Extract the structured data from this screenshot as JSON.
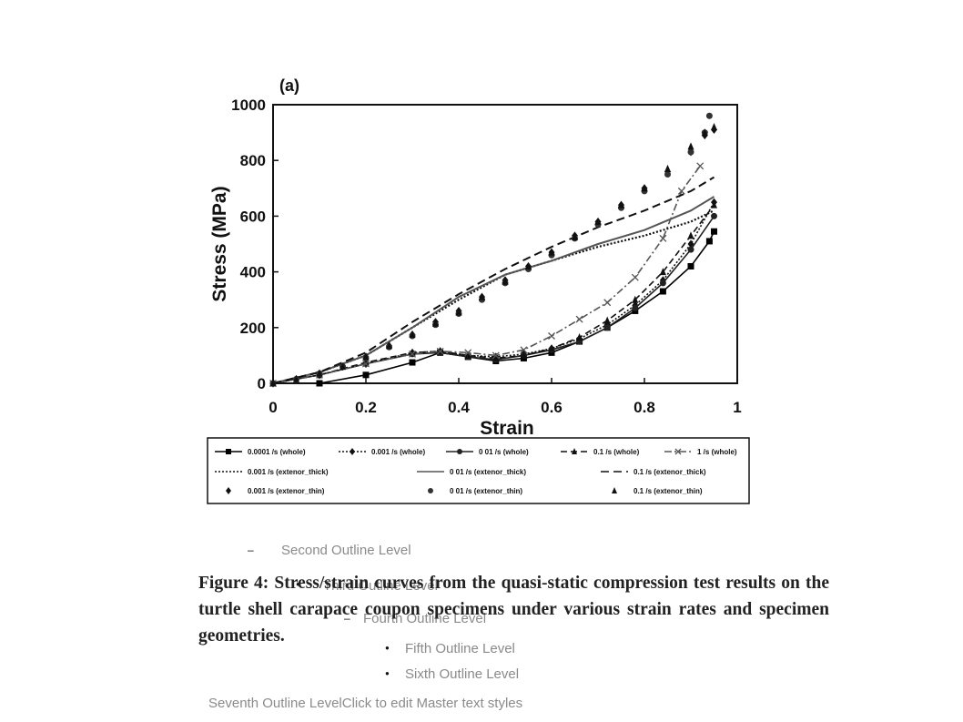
{
  "chart_data": {
    "type": "scatter",
    "panel_label": "(a)",
    "xlabel": "Strain",
    "ylabel": "Stress (MPa)",
    "xlim": [
      0,
      1
    ],
    "ylim": [
      0,
      1000
    ],
    "xticks": [
      "0",
      "0.2",
      "0.4",
      "0.6",
      "0.8",
      "1"
    ],
    "yticks": [
      "0",
      "200",
      "400",
      "600",
      "800",
      "1000"
    ],
    "grid": false,
    "legend_position": "bottom",
    "series": [
      {
        "name": "0.0001 /s (whole)",
        "style": "line-square",
        "x": [
          0.1,
          0.2,
          0.3,
          0.36,
          0.42,
          0.48,
          0.54,
          0.6,
          0.66,
          0.72,
          0.78,
          0.84,
          0.9,
          0.94,
          0.95
        ],
        "y": [
          0,
          30,
          75,
          110,
          95,
          80,
          90,
          110,
          150,
          200,
          260,
          330,
          420,
          510,
          545
        ]
      },
      {
        "name": "0.001 /s (whole)",
        "style": "dotted-diamond",
        "x": [
          0,
          0.1,
          0.2,
          0.3,
          0.36,
          0.42,
          0.48,
          0.54,
          0.6,
          0.66,
          0.72,
          0.78,
          0.84,
          0.9,
          0.95
        ],
        "y": [
          0,
          30,
          70,
          110,
          115,
          100,
          95,
          105,
          125,
          160,
          210,
          280,
          370,
          500,
          650
        ]
      },
      {
        "name": "0 01 /s (whole)",
        "style": "line-circle",
        "x": [
          0,
          0.1,
          0.2,
          0.3,
          0.36,
          0.42,
          0.48,
          0.54,
          0.6,
          0.66,
          0.72,
          0.78,
          0.84,
          0.9,
          0.95
        ],
        "y": [
          0,
          30,
          70,
          105,
          110,
          95,
          85,
          100,
          120,
          150,
          200,
          270,
          360,
          480,
          600
        ]
      },
      {
        "name": "0.1 /s (whole)",
        "style": "dash-triangle",
        "x": [
          0,
          0.1,
          0.2,
          0.3,
          0.36,
          0.42,
          0.48,
          0.54,
          0.6,
          0.66,
          0.72,
          0.78,
          0.84,
          0.9,
          0.95
        ],
        "y": [
          0,
          30,
          75,
          110,
          115,
          100,
          90,
          100,
          125,
          165,
          225,
          300,
          400,
          530,
          640
        ]
      },
      {
        "name": "1 /s (whole)",
        "style": "dashdot-x",
        "x": [
          0,
          0.1,
          0.2,
          0.3,
          0.36,
          0.42,
          0.48,
          0.54,
          0.6,
          0.66,
          0.72,
          0.78,
          0.84,
          0.88,
          0.92
        ],
        "y": [
          0,
          30,
          70,
          105,
          115,
          110,
          100,
          120,
          170,
          230,
          290,
          380,
          520,
          690,
          780
        ]
      },
      {
        "name": "0.001 /s (extenor_thick)",
        "style": "dotted",
        "x": [
          0,
          0.1,
          0.2,
          0.3,
          0.4,
          0.5,
          0.6,
          0.7,
          0.8,
          0.9,
          0.95
        ],
        "y": [
          0,
          40,
          100,
          200,
          300,
          390,
          440,
          490,
          530,
          580,
          620
        ]
      },
      {
        "name": "0 01 /s (extenor_thick)",
        "style": "solid-gray",
        "x": [
          0,
          0.1,
          0.2,
          0.3,
          0.4,
          0.5,
          0.6,
          0.7,
          0.8,
          0.9,
          0.95
        ],
        "y": [
          0,
          40,
          100,
          200,
          310,
          390,
          440,
          500,
          550,
          620,
          670
        ]
      },
      {
        "name": "0.1 /s (extenor_thick)",
        "style": "dashed",
        "x": [
          0,
          0.1,
          0.2,
          0.3,
          0.4,
          0.5,
          0.6,
          0.7,
          0.8,
          0.9,
          0.95
        ],
        "y": [
          0,
          40,
          110,
          220,
          320,
          410,
          490,
          560,
          620,
          690,
          740
        ]
      },
      {
        "name": "0.001 /s (extenor_thin)",
        "style": "diamond",
        "x": [
          0,
          0.05,
          0.1,
          0.15,
          0.2,
          0.25,
          0.3,
          0.35,
          0.4,
          0.45,
          0.5,
          0.55,
          0.6,
          0.65,
          0.7,
          0.75,
          0.8,
          0.85,
          0.9,
          0.93,
          0.95
        ],
        "y": [
          0,
          15,
          35,
          60,
          95,
          135,
          175,
          220,
          260,
          310,
          370,
          420,
          470,
          530,
          580,
          640,
          700,
          760,
          830,
          890,
          910
        ]
      },
      {
        "name": "0 01 /s (extenor_thin)",
        "style": "circle",
        "x": [
          0,
          0.05,
          0.1,
          0.15,
          0.2,
          0.25,
          0.3,
          0.35,
          0.4,
          0.45,
          0.5,
          0.55,
          0.6,
          0.65,
          0.7,
          0.75,
          0.8,
          0.85,
          0.9,
          0.93,
          0.94
        ],
        "y": [
          0,
          15,
          35,
          60,
          90,
          130,
          170,
          210,
          250,
          300,
          360,
          410,
          460,
          520,
          570,
          630,
          690,
          750,
          830,
          900,
          960
        ]
      },
      {
        "name": "0.1 /s (extenor_thin)",
        "style": "triangle",
        "x": [
          0,
          0.05,
          0.1,
          0.15,
          0.2,
          0.25,
          0.3,
          0.35,
          0.4,
          0.45,
          0.5,
          0.55,
          0.6,
          0.65,
          0.7,
          0.75,
          0.8,
          0.85,
          0.9,
          0.93,
          0.95
        ],
        "y": [
          0,
          15,
          35,
          60,
          95,
          135,
          175,
          215,
          255,
          310,
          365,
          420,
          470,
          525,
          580,
          640,
          700,
          770,
          850,
          900,
          920
        ]
      }
    ]
  },
  "outline": {
    "level2": "Second Outline Level",
    "level3": "Third Outline Level",
    "level4": "Fourth Outline Level",
    "level5": "Fifth Outline Level",
    "level6": "Sixth Outline Level",
    "level7": "Seventh Outline LevelClick to edit Master text styles",
    "dash": "–",
    "dot": "●"
  },
  "caption": "Figure 4: Stress/strain curves from the quasi-static compression test results on the turtle shell carapace coupon specimens under various strain rates and specimen geometries."
}
